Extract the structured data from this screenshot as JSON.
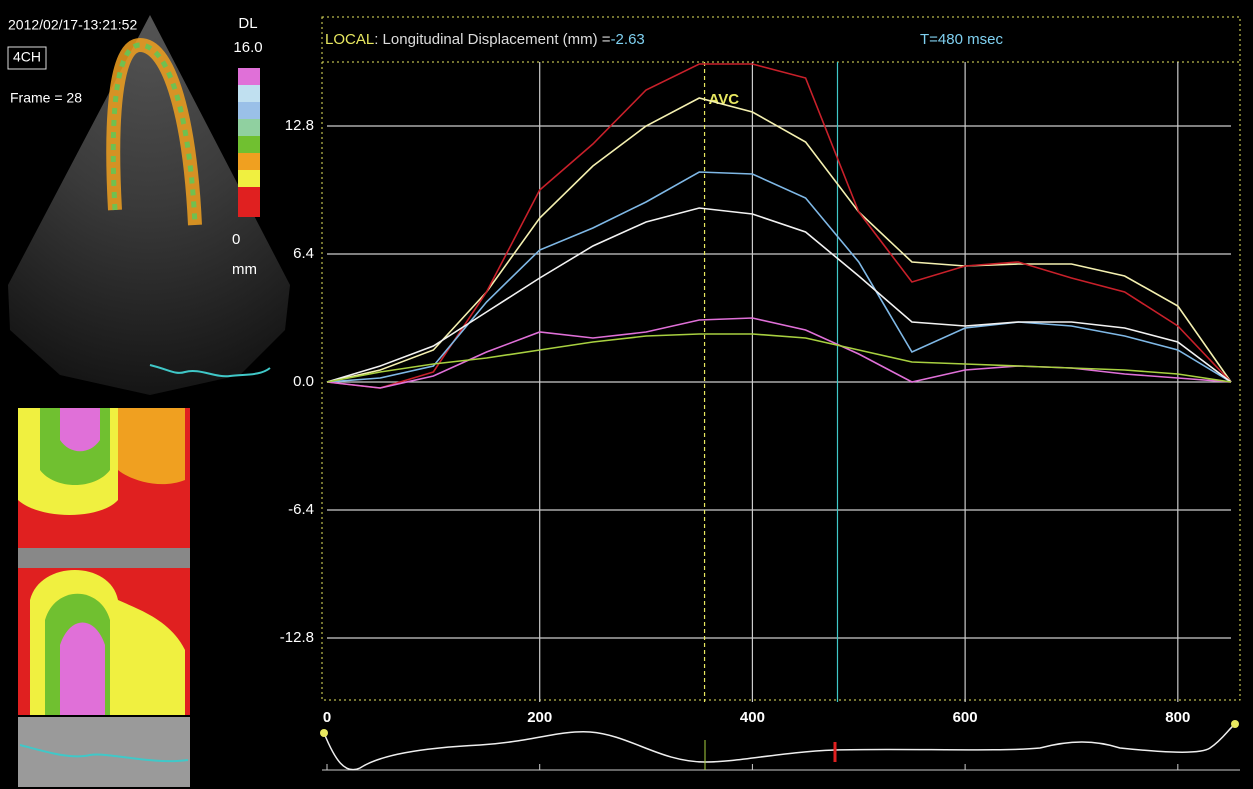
{
  "chart_data": {
    "type": "line",
    "header": {
      "mode": "LOCAL",
      "measure": ": Longitudinal Displacement (mm) =",
      "value": "-2.63",
      "time": "T=480 msec"
    },
    "x": [
      0,
      50,
      100,
      150,
      200,
      250,
      300,
      350,
      400,
      450,
      500,
      550,
      600,
      650,
      700,
      750,
      800,
      850
    ],
    "series": [
      {
        "color": "#f4f0b0",
        "values": [
          0,
          0.6,
          1.6,
          4.5,
          8.2,
          10.8,
          12.8,
          14.2,
          13.5,
          12.0,
          8.5,
          6.0,
          5.8,
          5.9,
          5.9,
          5.3,
          3.8,
          0
        ]
      },
      {
        "color": "#c8202a",
        "values": [
          0,
          -0.3,
          0.5,
          4.5,
          9.6,
          11.9,
          14.6,
          15.9,
          15.9,
          15.2,
          8.5,
          5.0,
          5.8,
          6.0,
          5.2,
          4.5,
          2.8,
          0
        ]
      },
      {
        "color": "#7fb8e6",
        "values": [
          0,
          0.2,
          0.8,
          4.0,
          6.6,
          7.7,
          9.0,
          10.5,
          10.4,
          9.2,
          6.0,
          1.5,
          2.7,
          3.0,
          2.8,
          2.3,
          1.6,
          0
        ]
      },
      {
        "color": "#f2f2f2",
        "values": [
          0,
          0.8,
          1.8,
          3.5,
          5.2,
          6.8,
          8.0,
          8.7,
          8.4,
          7.5,
          5.3,
          3.0,
          2.8,
          3.0,
          3.0,
          2.7,
          2.0,
          0
        ]
      },
      {
        "color": "#e070d8",
        "values": [
          0,
          -0.3,
          0.3,
          1.5,
          2.5,
          2.2,
          2.5,
          3.1,
          3.2,
          2.6,
          1.4,
          0.0,
          0.6,
          0.8,
          0.7,
          0.4,
          0.2,
          0
        ]
      },
      {
        "color": "#a8d040",
        "values": [
          0,
          0.5,
          0.9,
          1.2,
          1.6,
          2.0,
          2.3,
          2.4,
          2.4,
          2.2,
          1.6,
          1.0,
          0.9,
          0.8,
          0.7,
          0.6,
          0.4,
          0
        ]
      }
    ],
    "markers": [
      {
        "x": 355,
        "label": "AVC",
        "color": "#e8e860"
      },
      {
        "x": 480,
        "color": "#40c8c8"
      }
    ],
    "xlim": [
      0,
      850
    ],
    "xticks": [
      0,
      200,
      400,
      600,
      800
    ],
    "ylim": [
      -16,
      16
    ],
    "yticks": [
      12.8,
      6.4,
      {
        "value": 0,
        "label": "0.0"
      },
      -6.4,
      -12.8
    ],
    "grid": true
  },
  "left_panel": {
    "timestamp": "2012/02/17-13:21:52",
    "view": "4CH",
    "frame": "Frame = 28",
    "scale_name": "DL",
    "scale_max": "16.0",
    "scale_min": "0",
    "scale_unit": "mm"
  }
}
